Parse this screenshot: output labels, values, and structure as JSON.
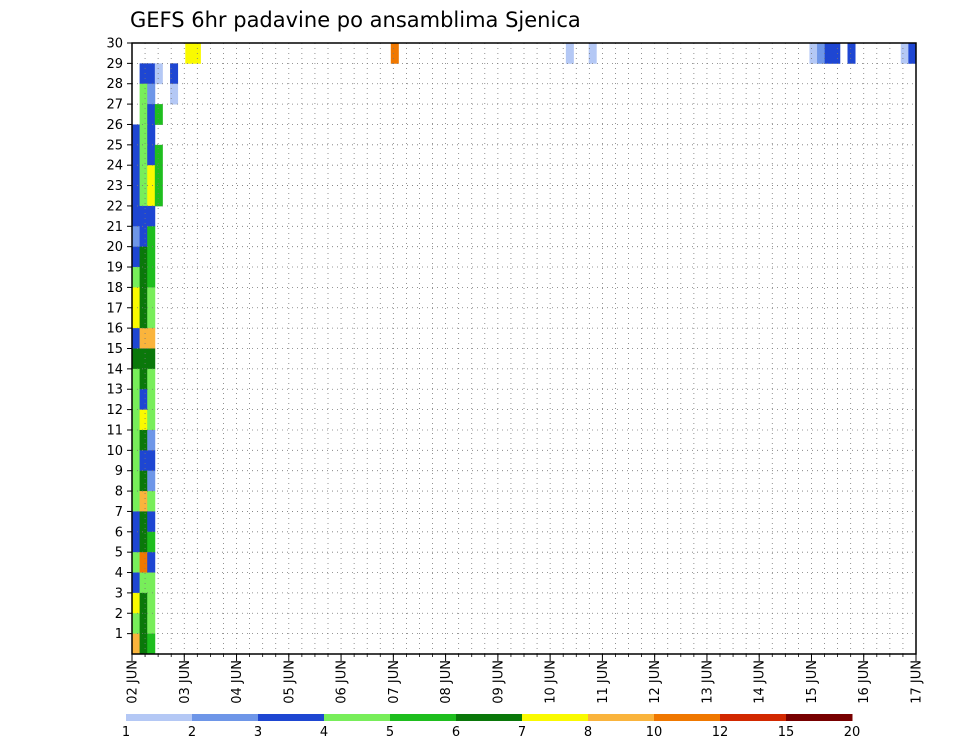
{
  "chart_data": {
    "type": "heatmap",
    "title": "GEFS 6hr padavine po ansamblima Sjenica",
    "xlabel": "",
    "ylabel": "",
    "x_ticks": [
      "02 JUN",
      "03 JUN",
      "04 JUN",
      "05 JUN",
      "06 JUN",
      "07 JUN",
      "08 JUN",
      "09 JUN",
      "10 JUN",
      "11 JUN",
      "12 JUN",
      "13 JUN",
      "14 JUN",
      "15 JUN",
      "16 JUN",
      "17 JUN"
    ],
    "y_ticks": [
      "1",
      "2",
      "3",
      "4",
      "5",
      "6",
      "7",
      "8",
      "9",
      "10",
      "11",
      "12",
      "13",
      "14",
      "15",
      "16",
      "17",
      "18",
      "19",
      "20",
      "21",
      "22",
      "23",
      "24",
      "25",
      "26",
      "27",
      "28",
      "29",
      "30"
    ],
    "ylim": [
      0,
      30
    ],
    "grid": true,
    "legend": {
      "position": "bottom",
      "labels": [
        "1",
        "2",
        "3",
        "4",
        "5",
        "6",
        "7",
        "8",
        "10",
        "12",
        "15",
        "20"
      ],
      "colors": [
        "#b4c8f5",
        "#6e96e8",
        "#1e46d2",
        "#1e46d2",
        "#78ee5a",
        "#1ebe1e",
        "#0a780a",
        "#fafa00",
        "#fab43c",
        "#f07800",
        "#d22800",
        "#780000"
      ]
    },
    "palette": {
      "0": "#ffffff",
      "1": "#b4c8f5",
      "2": "#6e96e8",
      "3": "#1e46d2",
      "4": "#78ee5a",
      "5": "#1ebe1e",
      "6": "#0a780a",
      "7": "#fafa00",
      "8": "#fab43c",
      "9": "#f07800",
      "10": "#d22800",
      "11": "#780000"
    },
    "rows_note": "rows listed from member 30 (top) to member 1 (bottom); each char is one 6hr column, '0' = no precipitation",
    "rows": [
      "0000000770000000000000000000000000900000000000000000000001001000000000000000000000000000012330300000013",
      "03310300000000000000000000000000000000000000000000000000000000000000000000000000000000000000000000000000",
      "04200100000000000000000000000000000000000000000000000000000000000000000000000000000000000000000000000000",
      "04350000000000000000000000000000000000000000000000000000000000000000000000000000000000000000000000000000",
      "34300000000000000000000000000000000000000000000000000000000000000000000000000000000000000000000000000000",
      "34350000000000000000000000000000000000000000000000000000000000000000000000000000000000000000000000000000",
      "34750000000000000000000000000000000000000000000000000000000000000000000000000000000000000000000000000000",
      "34750000000000000000000000000000000000000000000000000000000000000000000000000000000000000000000000000000",
      "33300000000000000000000000000000000000000000000000000000000000000000000000000000000000000000000000000000",
      "23500000000000000000000000000000000000000000000000000000000000000000000000000000000000000000000000000000",
      "36500000000000000000000000000000000000000000000000000000000000000000000000000000000000000000000000000000",
      "46500000000000000000000000000000000000000000000000000000000000000000000000000000000000000000000000000000",
      "76400000000000000000000000000000000000000000000000000000000000000000000000000000000000000000000000000000",
      "76400000000000000000000000000000000000000000000000000000000000000000000000000000000000000000000000000000",
      "38800000000000000000000000000000000000000000000000000000000000000000000000000000000000000000000000000000",
      "66600000000000000000000000000000000000000000000000000000000000000000000000000000000000000000000000000000",
      "46400000000000000000000000000000000000000000000000000000000000000000000000000000000000000000000000000000",
      "43400000000000000000000000000000000000000000000000000000000000000000000000000000000000000000000000000000",
      "47400000000000000000000000000000000000000000000000000000000000000000000000000000000000000000000000000000",
      "46200000000000000000000000000000000000000000000000000000000000000000000000000000000000000000000000000000",
      "43300000000000000000000000000000000000000000000000000000000000000000000000000000000000000000000000000000",
      "46200000000000000000000000000000000000000000000000000000000000000000000000000000000000000000000000000000",
      "48400000000000000000000000000000000000000000000000000000000000000000000000000000000000000000000000000000",
      "36300000000000000000000000000000000000000000000000000000000000000000000000000000000000000000000000000000",
      "36500000000000000000000000000000000000000000000000000000000000000000000000000000000000000000000000000000",
      "49300000000000000000000000000000000000000000000000000000000000000000000000000000000000000000000000000000",
      "34400000000000000000000000000000000000000000000000000000000000000000000000000000000000000000000000000000",
      "76400000000000000000000000000000000000000000000000000000000000000000000000000000000000000000000000000000",
      "46400000000000000000000000000000000000000000000000000000000000000000000000000000000000000000000000000000",
      "86500000000000000000000000000000000000000000000000000000000000000000000000000000000000000000000000000000"
    ]
  }
}
